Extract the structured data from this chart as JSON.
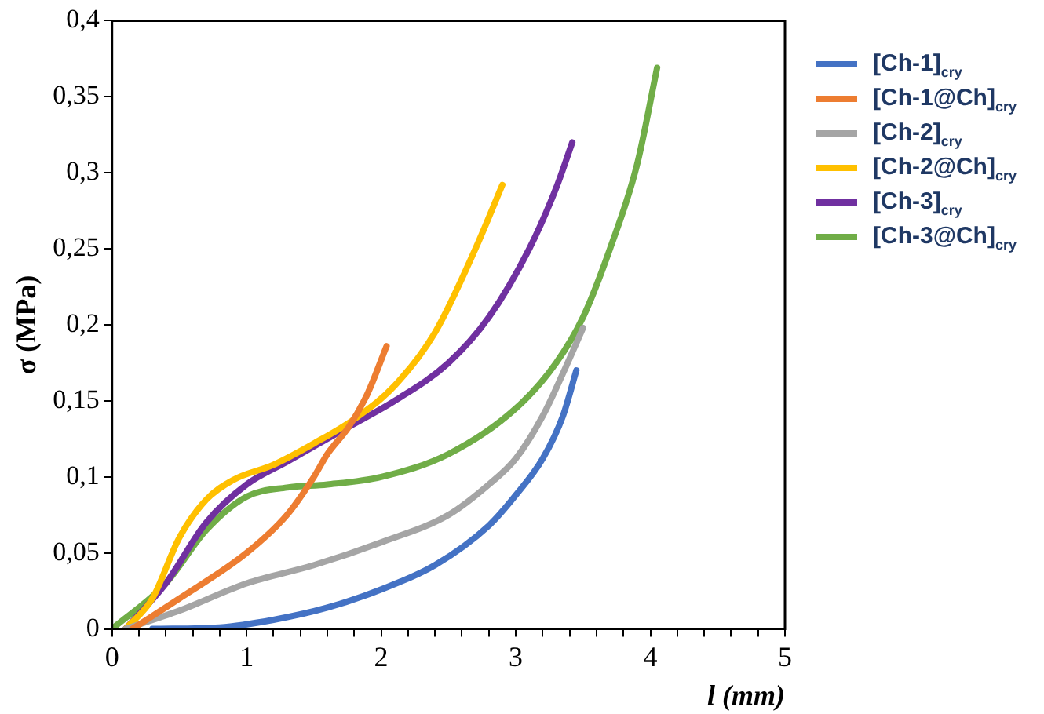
{
  "chart_data": {
    "type": "line",
    "xlabel": "l (mm)",
    "ylabel": "σ (MPa)",
    "legend": "right",
    "grid": false,
    "marker": "none",
    "line_style": "solid",
    "xlim": [
      0,
      5
    ],
    "xticks": [
      0,
      {
        "value": 0.2,
        "label": null
      },
      {
        "value": 0.4,
        "label": null
      },
      {
        "value": 0.6,
        "label": null
      },
      {
        "value": 0.8,
        "label": null
      },
      1,
      {
        "value": 1.2,
        "label": null
      },
      {
        "value": 1.4,
        "label": null
      },
      {
        "value": 1.6,
        "label": null
      },
      {
        "value": 1.8,
        "label": null
      },
      2,
      {
        "value": 2.2,
        "label": null
      },
      {
        "value": 2.4,
        "label": null
      },
      {
        "value": 2.6,
        "label": null
      },
      {
        "value": 2.8,
        "label": null
      },
      3,
      {
        "value": 3.2,
        "label": null
      },
      {
        "value": 3.4,
        "label": null
      },
      {
        "value": 3.6,
        "label": null
      },
      {
        "value": 3.8,
        "label": null
      },
      4,
      {
        "value": 4.2,
        "label": null
      },
      {
        "value": 4.4,
        "label": null
      },
      {
        "value": 4.6,
        "label": null
      },
      {
        "value": 4.8,
        "label": null
      },
      5
    ],
    "ylim": [
      0,
      0.4
    ],
    "yticks": [
      0,
      {
        "value": 0.05,
        "label": "0,05"
      },
      {
        "value": 0.1,
        "label": "0,1"
      },
      {
        "value": 0.15,
        "label": "0,15"
      },
      {
        "value": 0.2,
        "label": "0,2"
      },
      {
        "value": 0.25,
        "label": "0,25"
      },
      {
        "value": 0.3,
        "label": "0,3"
      },
      {
        "value": 0.35,
        "label": "0,35"
      },
      {
        "value": 0.4,
        "label": "0,4"
      }
    ],
    "series": [
      {
        "name": "[Ch-1]$_{cry}$",
        "color": "#4472c4",
        "x": [
          0.3,
          0.8,
          1.2,
          1.6,
          2,
          2.4,
          2.8,
          3,
          3.2,
          3.35,
          3.45
        ],
        "values": [
          0,
          0.001,
          0.006,
          0.014,
          0.026,
          0.042,
          0.068,
          0.088,
          0.112,
          0.14,
          0.17
        ]
      },
      {
        "name": "[Ch-1@Ch]$_{cry}$",
        "color": "#ed7d31",
        "x": [
          0.15,
          0.5,
          1,
          1.3,
          1.5,
          1.6,
          1.76,
          1.9,
          2.04
        ],
        "values": [
          0,
          0.02,
          0.05,
          0.075,
          0.1,
          0.115,
          0.133,
          0.155,
          0.186
        ]
      },
      {
        "name": "[Ch-2]$_{cry}$",
        "color": "#a5a5a5",
        "x": [
          0.1,
          0.5,
          1,
          1.5,
          2,
          2.5,
          2.8,
          3,
          3.2,
          3.35,
          3.5
        ],
        "values": [
          0,
          0.012,
          0.03,
          0.042,
          0.057,
          0.075,
          0.095,
          0.112,
          0.14,
          0.168,
          0.198
        ]
      },
      {
        "name": "[Ch-2@Ch]$_{cry}$",
        "color": "#ffc000",
        "x": [
          0.1,
          0.3,
          0.5,
          0.7,
          0.9,
          1.2,
          1.5,
          1.8,
          2.1,
          2.4,
          2.7,
          2.9
        ],
        "values": [
          0,
          0.02,
          0.06,
          0.085,
          0.098,
          0.108,
          0.122,
          0.138,
          0.16,
          0.195,
          0.25,
          0.292
        ]
      },
      {
        "name": "[Ch-3]$_{cry}$",
        "color": "#7030a0",
        "x": [
          0.1,
          0.4,
          0.7,
          1,
          1.3,
          1.76,
          2.1,
          2.5,
          2.8,
          3.1,
          3.3,
          3.42
        ],
        "values": [
          0,
          0.03,
          0.07,
          0.095,
          0.11,
          0.133,
          0.15,
          0.175,
          0.205,
          0.25,
          0.29,
          0.32
        ]
      },
      {
        "name": "[Ch-3@Ch]$_{cry}$",
        "color": "#70ad47",
        "x": [
          0,
          0.4,
          0.7,
          1,
          1.3,
          1.6,
          2,
          2.5,
          3,
          3.3,
          3.5,
          3.7,
          3.9,
          4.05
        ],
        "values": [
          0,
          0.03,
          0.065,
          0.087,
          0.093,
          0.095,
          0.1,
          0.115,
          0.145,
          0.175,
          0.205,
          0.25,
          0.305,
          0.369
        ]
      }
    ]
  }
}
